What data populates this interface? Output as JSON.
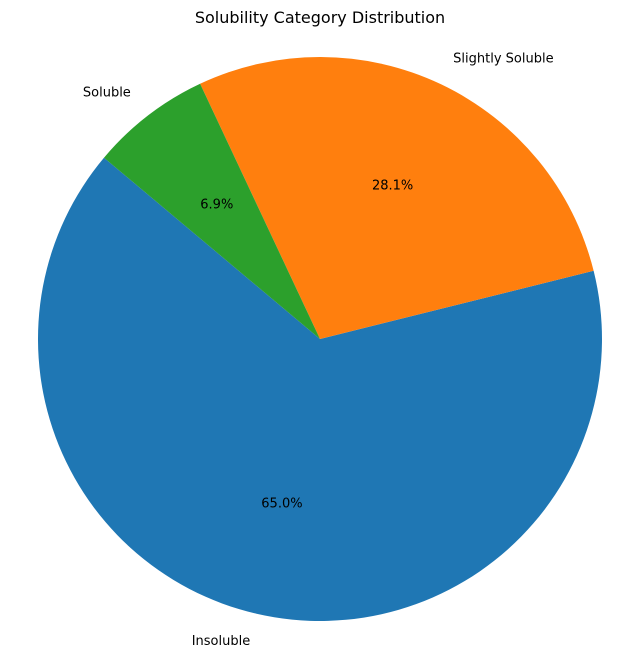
{
  "chart_data": {
    "type": "pie",
    "title": "Solubility Category Distribution",
    "categories": [
      "Insoluble",
      "Slightly Soluble",
      "Soluble"
    ],
    "values": [
      65.0,
      28.1,
      6.9
    ],
    "value_labels": [
      "65.0%",
      "28.1%",
      "6.9%"
    ],
    "colors": [
      "#1f77b4",
      "#ff7f0e",
      "#2ca02c"
    ],
    "start_angle_deg": 140,
    "direction": "counterclockwise",
    "legend": "none"
  }
}
